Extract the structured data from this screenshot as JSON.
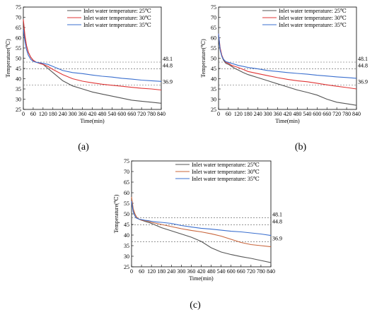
{
  "chart_data": [
    {
      "type": "line",
      "label": "(a)",
      "xlabel": "Time(min)",
      "ylabel": "Temperature(℃)",
      "xlim": [
        0,
        840
      ],
      "ylim": [
        25,
        75
      ],
      "xticks": [
        "0",
        "60",
        "120",
        "180",
        "240",
        "300",
        "360",
        "420",
        "480",
        "540",
        "600",
        "660",
        "720",
        "780",
        "840"
      ],
      "yticks": [
        "25",
        "30",
        "35",
        "40",
        "45",
        "50",
        "55",
        "60",
        "65",
        "70",
        "75"
      ],
      "reference_lines": [
        {
          "y": 48.1,
          "label": "48.1"
        },
        {
          "y": 44.8,
          "label": "44.8"
        },
        {
          "y": 36.9,
          "label": "36.9"
        }
      ],
      "legend_position": "top-right",
      "series": [
        {
          "name": "Inlet water temperature: 25℃",
          "color": "#555555",
          "x": [
            0,
            10,
            20,
            30,
            45,
            60,
            80,
            100,
            120,
            150,
            180,
            240,
            300,
            360,
            420,
            480,
            540,
            600,
            660,
            720,
            780,
            840
          ],
          "values": [
            65,
            60,
            56,
            53,
            50.5,
            49,
            48,
            47.5,
            47,
            45,
            43,
            39,
            36.5,
            35,
            33.5,
            32.5,
            31.5,
            30.5,
            29.5,
            29,
            28.5,
            28
          ]
        },
        {
          "name": "Inlet water temperature: 30℃",
          "color": "#e03535",
          "x": [
            0,
            10,
            20,
            30,
            45,
            60,
            80,
            100,
            120,
            150,
            180,
            240,
            300,
            360,
            420,
            480,
            540,
            600,
            660,
            720,
            780,
            840
          ],
          "values": [
            69,
            61,
            56,
            53,
            50.5,
            49,
            48,
            47.5,
            47,
            46,
            44.5,
            42,
            40,
            38.8,
            38,
            37.3,
            36.8,
            36.3,
            35.8,
            35.3,
            35,
            34.5
          ]
        },
        {
          "name": "Inlet water temperature: 35℃",
          "color": "#3a6fcf",
          "x": [
            0,
            10,
            20,
            30,
            45,
            60,
            80,
            100,
            120,
            150,
            180,
            240,
            300,
            360,
            420,
            480,
            540,
            600,
            660,
            720,
            780,
            840
          ],
          "values": [
            64,
            58,
            54,
            51.5,
            49.5,
            48.5,
            48,
            47.8,
            47.5,
            47,
            46,
            44,
            43,
            42.5,
            41.8,
            41.2,
            40.8,
            40.2,
            39.8,
            39.3,
            39,
            38.7
          ]
        }
      ]
    },
    {
      "type": "line",
      "label": "(b)",
      "xlabel": "Time(min)",
      "ylabel": "Temperature(℃)",
      "xlim": [
        0,
        840
      ],
      "ylim": [
        25,
        75
      ],
      "xticks": [
        "0",
        "60",
        "120",
        "180",
        "240",
        "300",
        "360",
        "420",
        "480",
        "540",
        "600",
        "660",
        "720",
        "780",
        "840"
      ],
      "yticks": [
        "25",
        "30",
        "35",
        "40",
        "45",
        "50",
        "55",
        "60",
        "65",
        "70",
        "75"
      ],
      "reference_lines": [
        {
          "y": 48.1,
          "label": "48.1"
        },
        {
          "y": 44.8,
          "label": "44.8"
        },
        {
          "y": 36.9,
          "label": "36.9"
        }
      ],
      "legend_position": "top-right",
      "series": [
        {
          "name": "Inlet water temperature: 25℃",
          "color": "#555555",
          "x": [
            0,
            10,
            20,
            30,
            45,
            60,
            80,
            100,
            120,
            150,
            180,
            240,
            300,
            360,
            420,
            480,
            540,
            600,
            660,
            720,
            780,
            840
          ],
          "values": [
            60,
            54,
            51,
            49,
            47.5,
            47,
            46,
            45,
            44.2,
            43,
            42,
            40.5,
            39,
            37.5,
            36,
            34.5,
            33.3,
            32,
            30,
            28.5,
            27.8,
            27
          ]
        },
        {
          "name": "Inlet water temperature: 30℃",
          "color": "#e03535",
          "x": [
            0,
            10,
            20,
            30,
            45,
            60,
            80,
            100,
            120,
            150,
            180,
            240,
            300,
            360,
            420,
            480,
            540,
            600,
            660,
            720,
            780,
            840
          ],
          "values": [
            62,
            55,
            51.5,
            49.5,
            48,
            47.5,
            46.5,
            46,
            45.5,
            44.5,
            43.5,
            42.5,
            41.5,
            40.5,
            39.7,
            39,
            38.5,
            37.8,
            37,
            36.3,
            35.7,
            35
          ]
        },
        {
          "name": "Inlet water temperature: 35℃",
          "color": "#3a6fcf",
          "x": [
            0,
            10,
            20,
            30,
            45,
            60,
            80,
            100,
            120,
            150,
            180,
            240,
            300,
            360,
            420,
            480,
            540,
            600,
            660,
            720,
            780,
            840
          ],
          "values": [
            62,
            54,
            51,
            49.5,
            48.3,
            48,
            47.5,
            47,
            46.5,
            46,
            45.5,
            44.8,
            44,
            43.5,
            43,
            42.6,
            42.2,
            41.7,
            41.3,
            40.9,
            40.6,
            40.2
          ]
        }
      ]
    },
    {
      "type": "line",
      "label": "(c)",
      "xlabel": "Time(min)",
      "ylabel": "Temperature(℃)",
      "xlim": [
        0,
        840
      ],
      "ylim": [
        25,
        75
      ],
      "xticks": [
        "0",
        "60",
        "120",
        "180",
        "240",
        "300",
        "360",
        "420",
        "480",
        "540",
        "600",
        "660",
        "720",
        "780",
        "840"
      ],
      "yticks": [
        "25",
        "30",
        "35",
        "40",
        "45",
        "50",
        "55",
        "60",
        "65",
        "70",
        "75"
      ],
      "reference_lines": [
        {
          "y": 48.1,
          "label": "48.1"
        },
        {
          "y": 44.8,
          "label": "44.8"
        },
        {
          "y": 36.9,
          "label": "36.9"
        }
      ],
      "legend_position": "top-right",
      "series": [
        {
          "name": "Inlet water temperature: 25℃",
          "color": "#555555",
          "x": [
            0,
            10,
            20,
            30,
            45,
            60,
            80,
            100,
            120,
            150,
            180,
            240,
            300,
            360,
            420,
            480,
            540,
            600,
            660,
            720,
            780,
            840
          ],
          "values": [
            57,
            52,
            50,
            48.5,
            47.5,
            47,
            46.5,
            46,
            45.5,
            44.5,
            43.5,
            42,
            40.5,
            39,
            37,
            34,
            32,
            30.8,
            29.8,
            29,
            28,
            27
          ]
        },
        {
          "name": "Inlet water temperature: 30℃",
          "color": "#c8643a",
          "x": [
            0,
            10,
            20,
            30,
            45,
            60,
            80,
            100,
            120,
            150,
            180,
            240,
            300,
            360,
            420,
            480,
            540,
            600,
            660,
            720,
            780,
            840
          ],
          "values": [
            58,
            52.5,
            50,
            48.5,
            47.5,
            47,
            46.8,
            46.5,
            46,
            45.5,
            45,
            44,
            43,
            42.2,
            41.5,
            40.6,
            39.5,
            38,
            36.5,
            35.5,
            35,
            34.5
          ]
        },
        {
          "name": "Inlet water temperature: 35℃",
          "color": "#3a6fcf",
          "x": [
            0,
            10,
            20,
            30,
            45,
            60,
            80,
            100,
            120,
            150,
            180,
            240,
            300,
            360,
            420,
            480,
            540,
            600,
            660,
            720,
            780,
            840
          ],
          "values": [
            56,
            51,
            49,
            48,
            47.5,
            47.3,
            47,
            46.8,
            46.5,
            46.2,
            46,
            45.5,
            44.5,
            43.8,
            43.2,
            42.8,
            42.3,
            41.8,
            41.5,
            41,
            40.5,
            39.8
          ]
        }
      ]
    }
  ]
}
